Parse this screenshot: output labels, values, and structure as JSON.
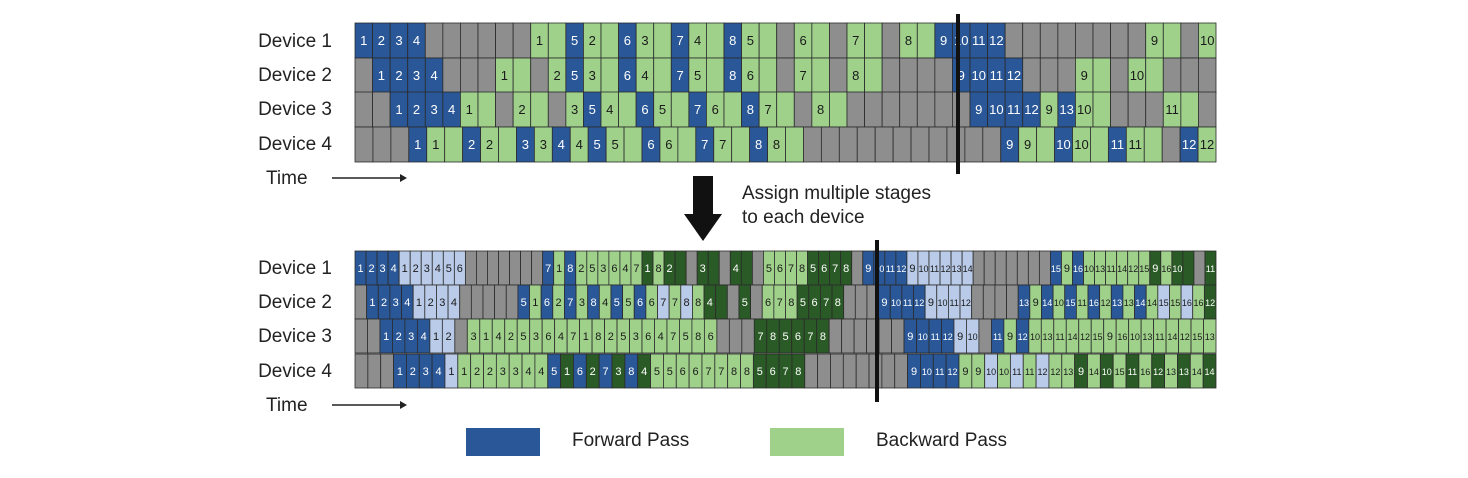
{
  "colors": {
    "forward": "#2a5797",
    "forward_light": "#b9cbe8",
    "backward": "#9fd18b",
    "backward_dark": "#2a5a25",
    "idle": "#8e8e8e",
    "line": "#111111"
  },
  "top": {
    "devices": [
      "Device 1",
      "Device 2",
      "Device 3",
      "Device 4"
    ],
    "time_label": "Time",
    "rows": [
      [
        [
          "F",
          "1"
        ],
        [
          "F",
          "2"
        ],
        [
          "F",
          "3"
        ],
        [
          "F",
          "4"
        ],
        [
          "I",
          ""
        ],
        [
          "I",
          ""
        ],
        [
          "I",
          ""
        ],
        [
          "I",
          ""
        ],
        [
          "I",
          ""
        ],
        [
          "I",
          ""
        ],
        [
          "B",
          "1"
        ],
        [
          "B",
          ""
        ],
        [
          "F",
          "5"
        ],
        [
          "B",
          "2"
        ],
        [
          "B",
          ""
        ],
        [
          "F",
          "6"
        ],
        [
          "B",
          "3"
        ],
        [
          "B",
          ""
        ],
        [
          "F",
          "7"
        ],
        [
          "B",
          "4"
        ],
        [
          "B",
          ""
        ],
        [
          "F",
          "8"
        ],
        [
          "B",
          "5"
        ],
        [
          "B",
          ""
        ],
        [
          "I",
          ""
        ],
        [
          "B",
          "6"
        ],
        [
          "B",
          ""
        ],
        [
          "I",
          ""
        ],
        [
          "B",
          "7"
        ],
        [
          "B",
          ""
        ],
        [
          "I",
          ""
        ],
        [
          "B",
          "8"
        ],
        [
          "B",
          ""
        ],
        [
          "F",
          "9"
        ],
        [
          "F",
          "10"
        ],
        [
          "F",
          "11"
        ],
        [
          "F",
          "12"
        ],
        [
          "I",
          ""
        ],
        [
          "I",
          ""
        ],
        [
          "I",
          ""
        ],
        [
          "I",
          ""
        ],
        [
          "I",
          ""
        ],
        [
          "I",
          ""
        ],
        [
          "I",
          ""
        ],
        [
          "I",
          ""
        ],
        [
          "B",
          "9"
        ],
        [
          "B",
          ""
        ],
        [
          "I",
          ""
        ],
        [
          "B",
          "10"
        ]
      ],
      [
        [
          "I",
          ""
        ],
        [
          "F",
          "1"
        ],
        [
          "F",
          "2"
        ],
        [
          "F",
          "3"
        ],
        [
          "F",
          "4"
        ],
        [
          "I",
          ""
        ],
        [
          "I",
          ""
        ],
        [
          "I",
          ""
        ],
        [
          "B",
          "1"
        ],
        [
          "B",
          ""
        ],
        [
          "I",
          ""
        ],
        [
          "B",
          "2"
        ],
        [
          "F",
          "5"
        ],
        [
          "B",
          "3"
        ],
        [
          "B",
          ""
        ],
        [
          "F",
          "6"
        ],
        [
          "B",
          "4"
        ],
        [
          "B",
          ""
        ],
        [
          "F",
          "7"
        ],
        [
          "B",
          "5"
        ],
        [
          "B",
          ""
        ],
        [
          "F",
          "8"
        ],
        [
          "B",
          "6"
        ],
        [
          "B",
          ""
        ],
        [
          "I",
          ""
        ],
        [
          "B",
          "7"
        ],
        [
          "B",
          ""
        ],
        [
          "I",
          ""
        ],
        [
          "B",
          "8"
        ],
        [
          "B",
          ""
        ],
        [
          "I",
          ""
        ],
        [
          "I",
          ""
        ],
        [
          "I",
          ""
        ],
        [
          "I",
          ""
        ],
        [
          "F",
          "9"
        ],
        [
          "F",
          "10"
        ],
        [
          "F",
          "11"
        ],
        [
          "F",
          "12"
        ],
        [
          "I",
          ""
        ],
        [
          "I",
          ""
        ],
        [
          "I",
          ""
        ],
        [
          "B",
          "9"
        ],
        [
          "B",
          ""
        ],
        [
          "I",
          ""
        ],
        [
          "B",
          "10"
        ],
        [
          "B",
          ""
        ],
        [
          "I",
          ""
        ],
        [
          "I",
          ""
        ],
        [
          "I",
          ""
        ]
      ],
      [
        [
          "I",
          ""
        ],
        [
          "I",
          ""
        ],
        [
          "F",
          "1"
        ],
        [
          "F",
          "2"
        ],
        [
          "F",
          "3"
        ],
        [
          "F",
          "4"
        ],
        [
          "B",
          "1"
        ],
        [
          "B",
          ""
        ],
        [
          "I",
          ""
        ],
        [
          "B",
          "2"
        ],
        [
          "B",
          ""
        ],
        [
          "I",
          ""
        ],
        [
          "B",
          "3"
        ],
        [
          "F",
          "5"
        ],
        [
          "B",
          "4"
        ],
        [
          "B",
          ""
        ],
        [
          "F",
          "6"
        ],
        [
          "B",
          "5"
        ],
        [
          "B",
          ""
        ],
        [
          "F",
          "7"
        ],
        [
          "B",
          "6"
        ],
        [
          "B",
          ""
        ],
        [
          "F",
          "8"
        ],
        [
          "B",
          "7"
        ],
        [
          "B",
          ""
        ],
        [
          "I",
          ""
        ],
        [
          "B",
          "8"
        ],
        [
          "B",
          ""
        ],
        [
          "I",
          ""
        ],
        [
          "I",
          ""
        ],
        [
          "I",
          ""
        ],
        [
          "I",
          ""
        ],
        [
          "I",
          ""
        ],
        [
          "I",
          ""
        ],
        [
          "I",
          ""
        ],
        [
          "F",
          "9"
        ],
        [
          "F",
          "10"
        ],
        [
          "F",
          "11"
        ],
        [
          "F",
          "12"
        ],
        [
          "B",
          "9"
        ],
        [
          "F",
          "13"
        ],
        [
          "B",
          "10"
        ],
        [
          "B",
          ""
        ],
        [
          "I",
          ""
        ],
        [
          "I",
          ""
        ],
        [
          "I",
          ""
        ],
        [
          "B",
          "11"
        ],
        [
          "B",
          ""
        ],
        [
          "I",
          ""
        ]
      ],
      [
        [
          "I",
          ""
        ],
        [
          "I",
          ""
        ],
        [
          "I",
          ""
        ],
        [
          "F",
          "1"
        ],
        [
          "B",
          "1"
        ],
        [
          "B",
          ""
        ],
        [
          "F",
          "2"
        ],
        [
          "B",
          "2"
        ],
        [
          "B",
          ""
        ],
        [
          "F",
          "3"
        ],
        [
          "B",
          "3"
        ],
        [
          "F",
          "4"
        ],
        [
          "B",
          "4"
        ],
        [
          "F",
          "5"
        ],
        [
          "B",
          "5"
        ],
        [
          "B",
          ""
        ],
        [
          "F",
          "6"
        ],
        [
          "B",
          "6"
        ],
        [
          "B",
          ""
        ],
        [
          "F",
          "7"
        ],
        [
          "B",
          "7"
        ],
        [
          "B",
          ""
        ],
        [
          "F",
          "8"
        ],
        [
          "B",
          "8"
        ],
        [
          "B",
          ""
        ],
        [
          "I",
          ""
        ],
        [
          "I",
          ""
        ],
        [
          "I",
          ""
        ],
        [
          "I",
          ""
        ],
        [
          "I",
          ""
        ],
        [
          "I",
          ""
        ],
        [
          "I",
          ""
        ],
        [
          "I",
          ""
        ],
        [
          "I",
          ""
        ],
        [
          "I",
          ""
        ],
        [
          "I",
          ""
        ],
        [
          "F",
          "9"
        ],
        [
          "B",
          "9"
        ],
        [
          "B",
          ""
        ],
        [
          "F",
          "10"
        ],
        [
          "B",
          "10"
        ],
        [
          "B",
          ""
        ],
        [
          "F",
          "11"
        ],
        [
          "B",
          "11"
        ],
        [
          "B",
          ""
        ],
        [
          "I",
          ""
        ],
        [
          "F",
          "12"
        ],
        [
          "B",
          "12"
        ]
      ]
    ]
  },
  "arrow_caption": [
    "Assign multiple stages",
    "to each device"
  ],
  "bottom": {
    "devices": [
      "Device 1",
      "Device 2",
      "Device 3",
      "Device 4"
    ],
    "time_label": "Time",
    "rows": [
      "F1 F2 F3 F4 L1 L2 L3 L4 L5 L6 I I I I I I I F7 B1 F8 B2 G5 B3 G6 B4 G7 D1 B8 D2 D I D3 D I D4 D I B5 B6 B7 B8 D5 D6 D7 D8 I F9 F10 F11 F12 L9 L10 L11 L12 L13 L14 I I I I I I I F15 B9 F16 B10 G13 B11 G14 B12 G15 D9 B16 D10 D I D11",
      "I F1 F2 F3 F4 L1 L2 L3 L4 I I I I I F5 B1 F6 B2 F7 B3 F8 B4 F5 B5 F6 B6 L7 B7 L8 B8 D4 D I D5 I B6 B7 B8 D5 D6 D7 D8 I I I F9 F10 F11 F12 L9 L10 L11 L12 I I I I F13 B9 F14 B10 F15 B11 F16 B12 F13 B13 F14 B14 L15 B15 L16 B16 D12",
      "I I F1 F2 F3 F4 L1 L2 I B3 B1 B4 B2 G5 B3 G6 B4 G7 B1 G8 B2 G5 B3 G6 B4 G7 B5 G8 B6 I I I D7 D8 D5 D6 D7 D8 I I I I I I F9 F10 F11 F12 L9 L10 I F11 B9 F12 B10 G13 B11 G14 B12 G15 B9 G16 B10 G13 B11 G14 B12 G15 B13",
      "I I I F1 F2 F3 F4 L1 B1 B2 B2 B3 B3 B4 B4 F5 D1 F6 D2 F7 D3 F8 D4 B5 B5 B6 B6 B7 B7 B8 B8 D5 D6 D7 D8 I I I I I I I I F9 F10 F11 F12 B9 B9 L10 B10 L11 B11 L12 B12 G13 D9 G14 D10 G15 D11 G16 D12 G13 D13 G14 D14"
    ]
  },
  "legend": [
    {
      "label": "Forward Pass",
      "color": "#2a5797"
    },
    {
      "label": "Backward Pass",
      "color": "#9fd18b"
    }
  ]
}
